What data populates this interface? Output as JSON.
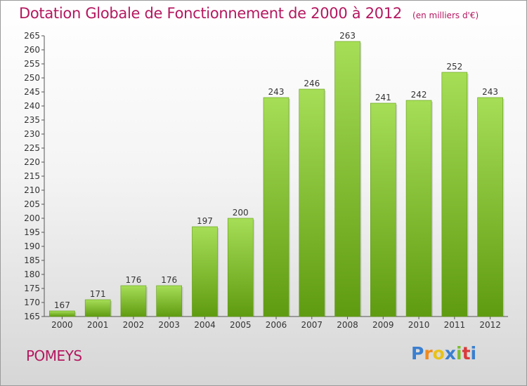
{
  "header": {
    "title": "Dotation Globale de Fonctionnement de 2000 à 2012",
    "subtitle": "(en milliers d'€)"
  },
  "footer": {
    "commune": "POMEYS",
    "logo_text": "Proxiti"
  },
  "colors": {
    "title": "#b5175f",
    "bar_light": "#a6de57",
    "bar_dark": "#5f9b11",
    "logo": [
      "#3a7fd0",
      "#f08a1c",
      "#e8c21a",
      "#3a7fd0",
      "#7cbf2f",
      "#d93a3a",
      "#3a7fd0"
    ]
  },
  "chart_data": {
    "type": "bar",
    "categories": [
      "2000",
      "2001",
      "2002",
      "2003",
      "2004",
      "2005",
      "2006",
      "2007",
      "2008",
      "2009",
      "2010",
      "2011",
      "2012"
    ],
    "values": [
      167,
      171,
      176,
      176,
      197,
      200,
      243,
      246,
      263,
      241,
      242,
      252,
      243
    ],
    "ylim": [
      165,
      265
    ],
    "yticks": [
      165,
      170,
      175,
      180,
      185,
      190,
      195,
      200,
      205,
      210,
      215,
      220,
      225,
      230,
      235,
      240,
      245,
      250,
      255,
      260,
      265
    ],
    "grid": false,
    "legend": "none"
  }
}
